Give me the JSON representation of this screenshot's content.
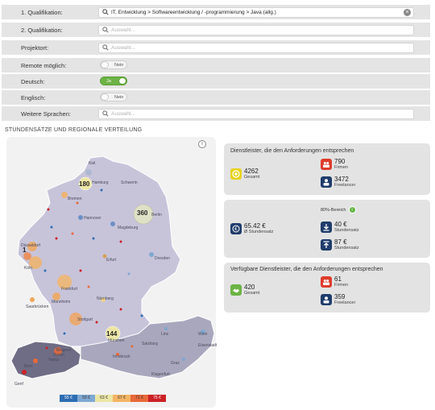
{
  "form": {
    "qual1": {
      "label": "1. Qualifikation:",
      "value": "IT, Entwicklung > Softwareentwicklung / -programmierung > Java (allg.)"
    },
    "qual2": {
      "label": "2. Qualifikation:",
      "placeholder": "Auswahl..."
    },
    "projektort": {
      "label": "Projektort:",
      "placeholder": "Auswahl..."
    },
    "remote": {
      "label": "Remote möglich:",
      "state": "Nein"
    },
    "deutsch": {
      "label": "Deutsch:",
      "state": "Ja"
    },
    "englisch": {
      "label": "Englisch:",
      "state": "Nein"
    },
    "sprachen": {
      "label": "Weitere Sprachen:",
      "placeholder": "Auswahl..."
    }
  },
  "section_title": "STUNDENSÄTZE UND REGIONALE VERTEILUNG",
  "map": {
    "info": "i",
    "cities": [
      "Kiel",
      "Hamburg",
      "Schwerin",
      "Bremen",
      "Hannover",
      "Berlin",
      "Magdeburg",
      "Düsseldorf",
      "Erfurt",
      "Dresden",
      "Köln",
      "Frankfurt",
      "Mannheim",
      "Saarbrücken",
      "Nürnberg",
      "Stuttgart",
      "München",
      "Linz",
      "Wien",
      "Salzburg",
      "Innsbruck",
      "Bregenz",
      "Vaduz",
      "Zürich",
      "Bern",
      "Graz",
      "Klagenfurt",
      "Eisenstadt",
      "Genf"
    ],
    "bubbles": [
      "180",
      "360",
      "144",
      "1"
    ],
    "legend": [
      {
        "label": "55 €",
        "color": "#2e6db3"
      },
      {
        "label": "59 €",
        "color": "#7fa8d2"
      },
      {
        "label": "63 €",
        "color": "#ece6a6"
      },
      {
        "label": "67 €",
        "color": "#f4b565"
      },
      {
        "label": "71 €",
        "color": "#e8693a"
      },
      {
        "label": "75 €",
        "color": "#cc2126"
      }
    ]
  },
  "panel1": {
    "title": "Dienstleister, die den Anforderungen entsprechen",
    "total_value": "4262",
    "total_label": "Gesamt",
    "firmen_value": "790",
    "firmen_label": "Firmen",
    "freelancer_value": "3472",
    "freelancer_label": "Freelancer"
  },
  "panel2": {
    "bereich_label": "80%-Bereich",
    "avg_value": "65.42 €",
    "avg_label": "Ø Stundensatz",
    "low_value": "40 €",
    "low_label": "Stundensatz",
    "high_value": "87 €",
    "high_label": "Stundensatz"
  },
  "panel3": {
    "title": "Verfügbare Dienstleister, die den Anforderungen entsprechen",
    "total_value": "420",
    "total_label": "Gesamt",
    "firmen_value": "61",
    "firmen_label": "Firmen",
    "freelancer_value": "359",
    "freelancer_label": "Freelancer"
  },
  "colors": {
    "accent_green": "#6db345",
    "red": "#dd3c2c",
    "navy": "#1f3c6b",
    "yellow": "#e8d31c"
  }
}
